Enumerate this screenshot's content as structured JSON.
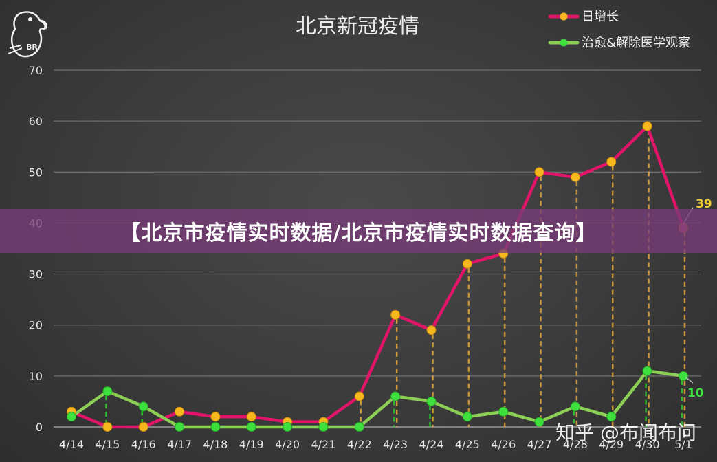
{
  "chart_data": {
    "type": "line",
    "title": "北京新冠疫情",
    "xlabel": "",
    "ylabel": "",
    "categories": [
      "4/14",
      "4/15",
      "4/16",
      "4/17",
      "4/18",
      "4/19",
      "4/20",
      "4/21",
      "4/22",
      "4/23",
      "4/24",
      "4/25",
      "4/26",
      "4/27",
      "4/28",
      "4/29",
      "4/30",
      "5/1"
    ],
    "ylim": [
      0,
      70
    ],
    "yticks": [
      "0",
      "10",
      "20",
      "30",
      "40",
      "50",
      "60",
      "70"
    ],
    "grid": true,
    "legend_position": "top-right",
    "series": [
      {
        "name": "日增长",
        "color": "#e0156a",
        "marker_color": "#f6b81c",
        "values": [
          3,
          0,
          0,
          3,
          2,
          2,
          1,
          1,
          6,
          22,
          19,
          32,
          34,
          50,
          49,
          52,
          59,
          39
        ]
      },
      {
        "name": "治愈&解除医学观察",
        "color": "#8ccf55",
        "marker_color": "#3de03d",
        "values": [
          2,
          7,
          4,
          0,
          0,
          0,
          0,
          0,
          0,
          6,
          5,
          2,
          3,
          1,
          4,
          2,
          11,
          10
        ]
      }
    ],
    "end_labels": [
      "39",
      "10"
    ]
  },
  "banner": {
    "text": "【北京市疫情实时数据/北京市疫情实时数据查询】"
  },
  "watermark": {
    "text": "知乎 @布闻布问"
  },
  "logo": {
    "text": "BR",
    "icon": "parrot-logo-icon"
  }
}
